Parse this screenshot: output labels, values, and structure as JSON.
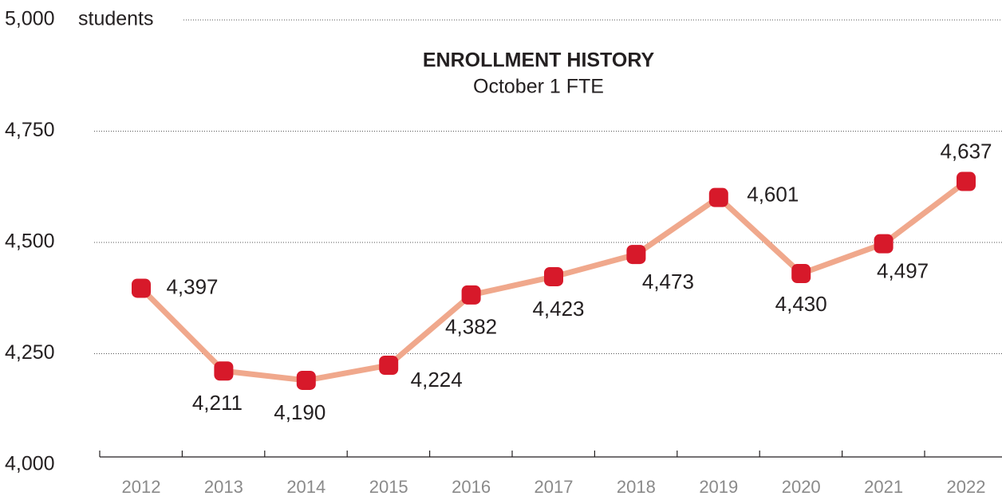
{
  "chart_data": {
    "type": "line",
    "title": "ENROLLMENT HISTORY",
    "subtitle": "October 1 FTE",
    "ylabel": "students",
    "categories": [
      "2012",
      "2013",
      "2014",
      "2015",
      "2016",
      "2017",
      "2018",
      "2019",
      "2020",
      "2021",
      "2022"
    ],
    "values": [
      4397,
      4211,
      4190,
      4224,
      4382,
      4423,
      4473,
      4601,
      4430,
      4497,
      4637
    ],
    "value_labels": [
      "4,397",
      "4,211",
      "4,190",
      "4,224",
      "4,382",
      "4,423",
      "4,473",
      "4,601",
      "4,430",
      "4,497",
      "4,637"
    ],
    "line_color": "#f0a88c",
    "marker_color": "#d7192a",
    "ylim": [
      4000,
      5000
    ],
    "yticks": [
      {
        "value": 4000,
        "label": "4,000"
      },
      {
        "value": 4250,
        "label": "4,250"
      },
      {
        "value": 4500,
        "label": "4,500"
      },
      {
        "value": 4750,
        "label": "4,750"
      },
      {
        "value": 5000,
        "label": "5,000"
      }
    ],
    "grid": true
  }
}
